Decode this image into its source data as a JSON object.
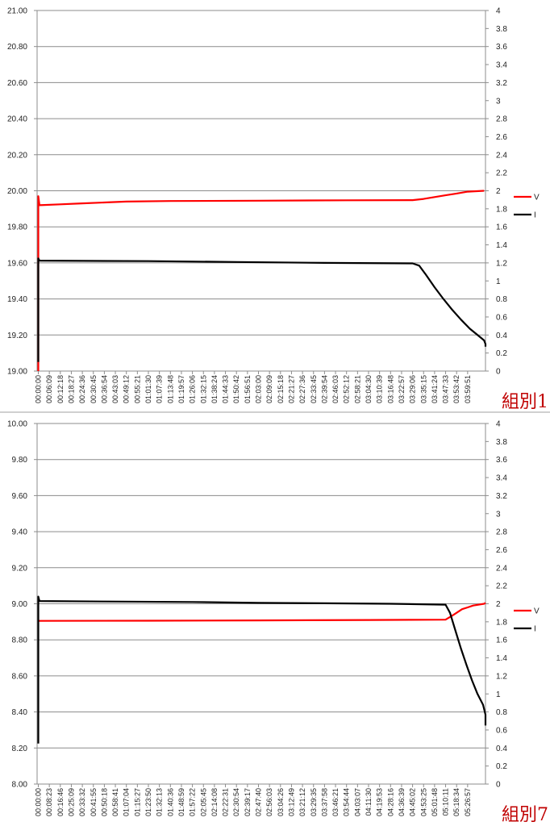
{
  "chart_data": [
    {
      "type": "line",
      "group_label": "組別1",
      "ylim_left": [
        19.0,
        21.0
      ],
      "left_ticks": [
        "19.00",
        "19.20",
        "19.40",
        "19.60",
        "19.80",
        "20.00",
        "20.20",
        "20.40",
        "20.60",
        "20.80",
        "21.00"
      ],
      "ylim_right": [
        0,
        4
      ],
      "right_ticks": [
        "0",
        "0.2",
        "0.4",
        "0.6",
        "0.8",
        "1",
        "1.2",
        "1.4",
        "1.6",
        "1.8",
        "2",
        "2.2",
        "2.4",
        "2.6",
        "2.8",
        "3",
        "3.2",
        "3.4",
        "3.6",
        "3.8",
        "4"
      ],
      "x_labels": [
        "00:00:00",
        "00:06:09",
        "00:12:18",
        "00:18:27",
        "00:24:36",
        "00:30:45",
        "00:36:54",
        "00:43:03",
        "00:49:12",
        "00:55:21",
        "01:01:30",
        "01:07:39",
        "01:13:48",
        "01:19:57",
        "01:26:06",
        "01:32:15",
        "01:38:24",
        "01:44:33",
        "01:50:42",
        "01:56:51",
        "02:03:00",
        "02:09:09",
        "02:15:18",
        "02:21:27",
        "02:27:36",
        "02:33:45",
        "02:39:54",
        "02:46:03",
        "02:52:12",
        "02:58:21",
        "03:04:30",
        "03:10:39",
        "03:16:48",
        "03:22:57",
        "03:29:06",
        "03:35:15",
        "03:41:24",
        "03:47:33",
        "03:53:42",
        "03:59:51"
      ],
      "grid": true,
      "legend_position": "right",
      "series": [
        {
          "name": "V",
          "axis": "left",
          "color": "#ff0000",
          "points": [
            [
              0,
              19.0
            ],
            [
              0,
              19.97
            ],
            [
              0.1,
              19.92
            ],
            [
              2,
              19.925
            ],
            [
              4,
              19.93
            ],
            [
              6,
              19.935
            ],
            [
              8,
              19.94
            ],
            [
              12,
              19.943
            ],
            [
              20,
              19.945
            ],
            [
              28,
              19.947
            ],
            [
              34,
              19.948
            ],
            [
              35,
              19.955
            ],
            [
              36,
              19.965
            ],
            [
              37,
              19.975
            ],
            [
              38,
              19.985
            ],
            [
              39,
              19.995
            ],
            [
              40.5,
              20.0
            ]
          ]
        },
        {
          "name": "I",
          "axis": "right",
          "color": "#000000",
          "points": [
            [
              0,
              0.1
            ],
            [
              0,
              1.25
            ],
            [
              0.1,
              1.225
            ],
            [
              4,
              1.222
            ],
            [
              10,
              1.22
            ],
            [
              18,
              1.21
            ],
            [
              26,
              1.2
            ],
            [
              34,
              1.195
            ],
            [
              34.6,
              1.17
            ],
            [
              35.2,
              1.07
            ],
            [
              36,
              0.93
            ],
            [
              36.8,
              0.8
            ],
            [
              37.6,
              0.68
            ],
            [
              38.4,
              0.57
            ],
            [
              39.2,
              0.47
            ],
            [
              40,
              0.39
            ],
            [
              40.5,
              0.34
            ],
            [
              41,
              0.3
            ],
            [
              41.5,
              0.27
            ]
          ]
        }
      ]
    },
    {
      "type": "line",
      "group_label": "組別7",
      "ylim_left": [
        8.0,
        10.0
      ],
      "left_ticks": [
        "8.00",
        "8.20",
        "8.40",
        "8.60",
        "8.80",
        "9.00",
        "9.20",
        "9.40",
        "9.60",
        "9.80",
        "10.00"
      ],
      "ylim_right": [
        0,
        4
      ],
      "right_ticks": [
        "0",
        "0.2",
        "0.4",
        "0.6",
        "0.8",
        "1",
        "1.2",
        "1.4",
        "1.6",
        "1.8",
        "2",
        "2.2",
        "2.4",
        "2.6",
        "2.8",
        "3",
        "3.2",
        "3.4",
        "3.6",
        "3.8",
        "4"
      ],
      "x_labels": [
        "00:00:00",
        "00:08:23",
        "00:16:46",
        "00:25:09",
        "00:33:32",
        "00:41:55",
        "00:50:18",
        "00:58:41",
        "01:07:04",
        "01:15:27",
        "01:23:50",
        "01:32:13",
        "01:40:36",
        "01:48:59",
        "01:57:22",
        "02:05:45",
        "02:14:08",
        "02:22:31",
        "02:30:54",
        "02:39:17",
        "02:47:40",
        "02:56:03",
        "03:04:26",
        "03:12:49",
        "03:21:12",
        "03:29:35",
        "03:37:58",
        "03:46:21",
        "03:54:44",
        "04:03:07",
        "04:11:30",
        "04:19:53",
        "04:28:16",
        "04:36:39",
        "04:45:02",
        "04:53:25",
        "05:01:48",
        "05:10:11",
        "05:18:34",
        "05:26:57"
      ],
      "grid": true,
      "legend_position": "right",
      "series": [
        {
          "name": "V",
          "axis": "left",
          "color": "#ff0000",
          "points": [
            [
              0,
              8.905
            ],
            [
              10,
              8.906
            ],
            [
              20,
              8.908
            ],
            [
              30,
              8.91
            ],
            [
              37,
              8.912
            ],
            [
              37.5,
              8.93
            ],
            [
              38,
              8.95
            ],
            [
              38.5,
              8.97
            ],
            [
              39,
              8.98
            ],
            [
              39.5,
              8.99
            ],
            [
              40.5,
              9.0
            ],
            [
              41.5,
              9.005
            ]
          ]
        },
        {
          "name": "I",
          "axis": "right",
          "color": "#000000",
          "points": [
            [
              0,
              0.45
            ],
            [
              0,
              2.08
            ],
            [
              0.1,
              2.03
            ],
            [
              6,
              2.025
            ],
            [
              14,
              2.02
            ],
            [
              20,
              2.01
            ],
            [
              26,
              2.005
            ],
            [
              32,
              2.0
            ],
            [
              37,
              1.99
            ],
            [
              37.4,
              1.9
            ],
            [
              37.9,
              1.7
            ],
            [
              38.4,
              1.5
            ],
            [
              38.9,
              1.32
            ],
            [
              39.4,
              1.15
            ],
            [
              39.9,
              1.0
            ],
            [
              40.4,
              0.88
            ],
            [
              40.9,
              0.77
            ],
            [
              41.5,
              0.65
            ]
          ]
        }
      ]
    }
  ]
}
